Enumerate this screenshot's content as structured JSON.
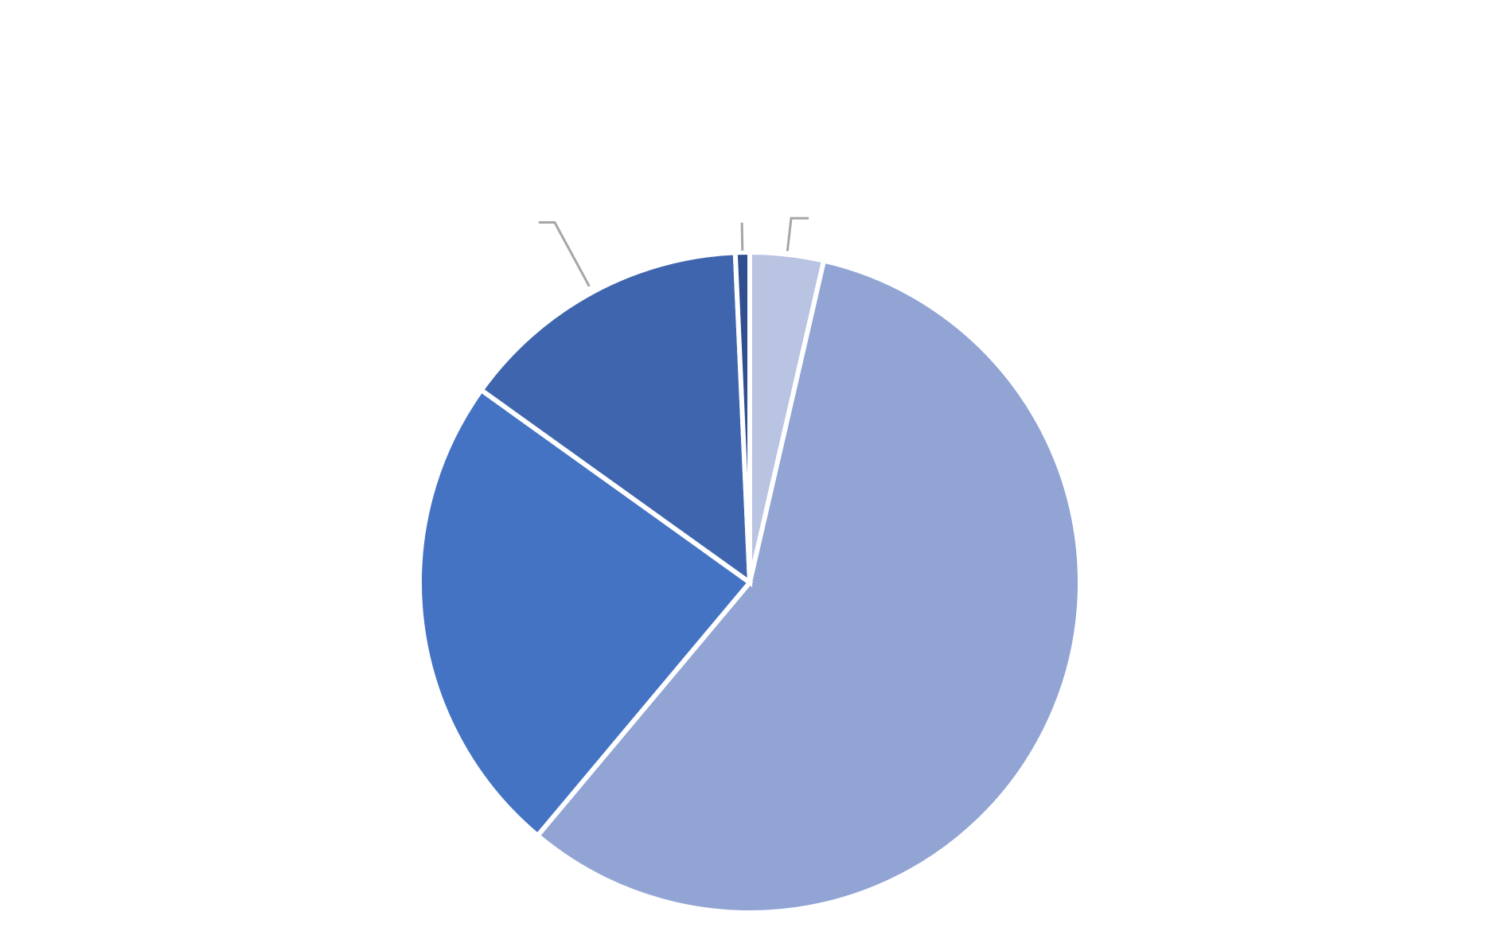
{
  "chart_data": {
    "type": "pie",
    "title": "",
    "start_angle_deg": 0,
    "direction": "clockwise",
    "labels_shown": false,
    "slices": [
      {
        "name": "",
        "value": 3.6,
        "color": "#b9c3e2"
      },
      {
        "name": "",
        "value": 57.5,
        "color": "#91a4d4"
      },
      {
        "name": "",
        "value": 23.8,
        "color": "#4573c4"
      },
      {
        "name": "",
        "value": 14.4,
        "color": "#3e65ad"
      },
      {
        "name": "",
        "value": 0.7,
        "color": "#2f4f8e"
      }
    ],
    "leader_lines": [
      {
        "slice_index": 0
      },
      {
        "slice_index": 3
      },
      {
        "slice_index": 4
      }
    ]
  }
}
